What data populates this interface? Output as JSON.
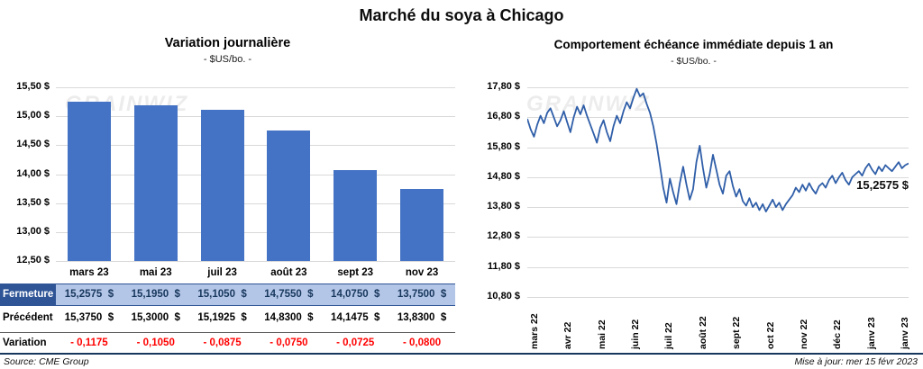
{
  "title": "Marché du soya à Chicago",
  "watermark": "GRAINWIZ",
  "chart_data": [
    {
      "type": "bar",
      "title": "Variation journalière",
      "subtitle": "- $US/bo. -",
      "categories": [
        "mars 23",
        "mai 23",
        "juil 23",
        "août 23",
        "sept 23",
        "nov 23"
      ],
      "values": [
        15.2575,
        15.195,
        15.105,
        14.755,
        14.075,
        13.75
      ],
      "ylim": [
        12.5,
        15.5
      ],
      "ytick_labels": [
        "15,50 $",
        "15,00 $",
        "14,50 $",
        "14,00 $",
        "13,50 $",
        "13,00 $",
        "12,50 $"
      ],
      "bar_color": "#4472C4",
      "grid": true,
      "legend": "none"
    },
    {
      "type": "line",
      "title": "Comportement échéance immédiate depuis 1 an",
      "subtitle": "- $US/bo. -",
      "x_labels": [
        "mars 22",
        "avr 22",
        "mai 22",
        "juin 22",
        "juil 22",
        "août 22",
        "sept 22",
        "oct 22",
        "nov 22",
        "déc 22",
        "janv 23",
        "janv 23"
      ],
      "values": [
        16.75,
        16.4,
        16.15,
        16.55,
        16.85,
        16.6,
        16.95,
        17.1,
        16.8,
        16.5,
        16.7,
        17.0,
        16.65,
        16.3,
        16.8,
        17.15,
        16.9,
        17.2,
        16.85,
        16.55,
        16.25,
        15.95,
        16.45,
        16.7,
        16.3,
        16.0,
        16.5,
        16.85,
        16.6,
        17.0,
        17.3,
        17.1,
        17.45,
        17.75,
        17.5,
        17.6,
        17.25,
        16.95,
        16.5,
        15.9,
        15.2,
        14.45,
        13.95,
        14.75,
        14.3,
        13.9,
        14.6,
        15.15,
        14.55,
        14.05,
        14.4,
        15.3,
        15.85,
        15.1,
        14.45,
        14.9,
        15.55,
        15.05,
        14.55,
        14.25,
        14.85,
        15.0,
        14.5,
        14.15,
        14.4,
        14.0,
        13.85,
        14.1,
        13.8,
        13.95,
        13.7,
        13.9,
        13.65,
        13.85,
        14.05,
        13.8,
        13.95,
        13.7,
        13.9,
        14.05,
        14.2,
        14.45,
        14.3,
        14.55,
        14.35,
        14.6,
        14.4,
        14.25,
        14.5,
        14.6,
        14.45,
        14.7,
        14.85,
        14.6,
        14.8,
        14.95,
        14.7,
        14.55,
        14.8,
        14.9,
        15.0,
        14.85,
        15.1,
        15.25,
        15.05,
        14.9,
        15.15,
        15.0,
        15.2,
        15.1,
        15.0,
        15.15,
        15.3,
        15.1,
        15.2,
        15.2575
      ],
      "ylim": [
        10.8,
        17.8
      ],
      "ytick_labels": [
        "17,80 $",
        "16,80 $",
        "15,80 $",
        "14,80 $",
        "13,80 $",
        "12,80 $",
        "11,80 $",
        "10,80 $"
      ],
      "line_color": "#2F5EA8",
      "grid": true,
      "annotation": {
        "text": "15,2575 $",
        "value": 15.2575
      }
    }
  ],
  "table": {
    "rows": [
      {
        "label": "Fermeture",
        "values": [
          "15,2575  $",
          "15,1950  $",
          "15,1050  $",
          "14,7550  $",
          "14,0750  $",
          "13,7500  $"
        ]
      },
      {
        "label": "Précédent",
        "values": [
          "15,3750  $",
          "15,3000  $",
          "15,1925  $",
          "14,8300  $",
          "14,1475  $",
          "13,8300  $"
        ]
      },
      {
        "label": "Variation",
        "values": [
          "- 0,1175",
          "- 0,1050",
          "- 0,0875",
          "- 0,0750",
          "- 0,0725",
          "- 0,0800"
        ]
      }
    ]
  },
  "footer": {
    "source": "Source: CME Group",
    "updated": "Mise à jour: mer 15 févr 2023"
  }
}
